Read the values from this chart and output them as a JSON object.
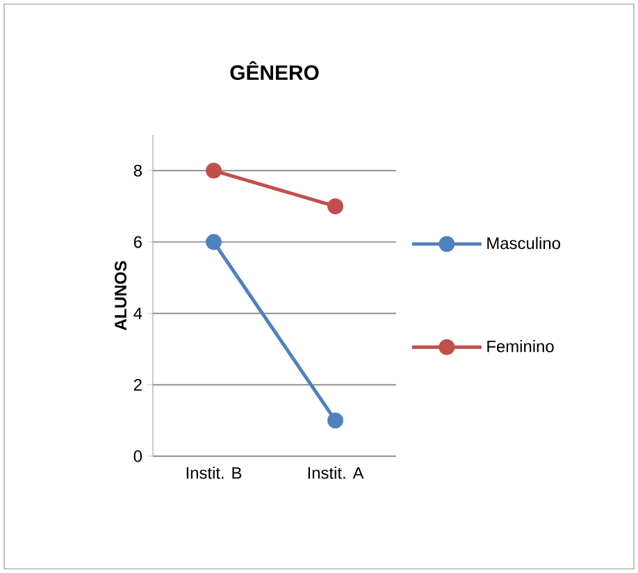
{
  "chart_data": {
    "type": "line",
    "title": "GÊNERO",
    "ylabel": "ALUNOS",
    "categories": [
      "Instit. B",
      "Instit. A"
    ],
    "series": [
      {
        "name": "Masculino",
        "color": "#4f81bd",
        "values": [
          6,
          1
        ]
      },
      {
        "name": "Feminino",
        "color": "#c0504d",
        "values": [
          8,
          7
        ]
      }
    ],
    "ylim": [
      0,
      9
    ],
    "yticks": [
      0,
      2,
      4,
      6,
      8
    ],
    "grid": "y",
    "legend": "right",
    "marker": "circle",
    "line_style": "solid"
  }
}
